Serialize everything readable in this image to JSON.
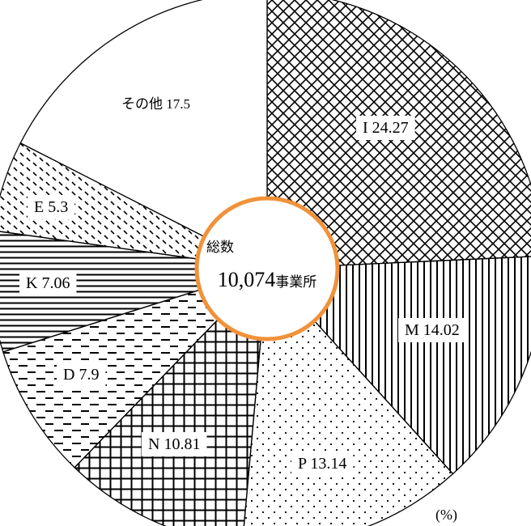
{
  "chart_data": {
    "type": "pie",
    "unit": "(%)",
    "slices": [
      {
        "label": "I",
        "value": 24.27,
        "pattern": "crosshatch-diagonal"
      },
      {
        "label": "M",
        "value": 14.02,
        "pattern": "vertical-lines"
      },
      {
        "label": "P",
        "value": 13.14,
        "pattern": "dots"
      },
      {
        "label": "N",
        "value": 10.81,
        "pattern": "grid"
      },
      {
        "label": "D",
        "value": 7.9,
        "pattern": "dashes"
      },
      {
        "label": "K",
        "value": 7.06,
        "pattern": "horizontal-lines"
      },
      {
        "label": "E",
        "value": 5.3,
        "pattern": "diagonal-dashes"
      },
      {
        "label": "その他",
        "value": 17.5,
        "pattern": "none"
      }
    ],
    "center": {
      "title": "総数",
      "number": "10,074",
      "unit": "事業所",
      "ring_color": "#f0923a"
    }
  }
}
